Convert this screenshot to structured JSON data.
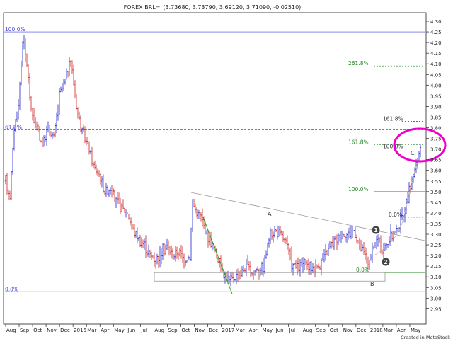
{
  "chart_data": {
    "type": "ohlc",
    "title": "FOREX BRL=",
    "quote_header": "(3.73680, 3.73790, 3.69120, 3.71090, -0.02510)",
    "footer": "Created in MetaStock",
    "y_axis": {
      "position": "right",
      "range": [
        2.95,
        4.3
      ],
      "ticks": [
        "4.30",
        "4.25",
        "4.20",
        "4.15",
        "4.10",
        "4.05",
        "4.00",
        "3.95",
        "3.90",
        "3.85",
        "3.80",
        "3.75",
        "3.70",
        "3.65",
        "3.60",
        "3.55",
        "3.50",
        "3.45",
        "3.40",
        "3.35",
        "3.30",
        "3.25",
        "3.20",
        "3.15",
        "3.10",
        "3.05",
        "3.00",
        "2.95"
      ]
    },
    "x_axis": {
      "labels": [
        "Aug",
        "Sep",
        "Oct",
        "Nov",
        "Dec",
        "2016",
        "Mar",
        "Apr",
        "May",
        "Jun",
        "Jul",
        "Aug",
        "Sep",
        "Oct",
        "Nov",
        "Dec",
        "2017",
        "Mar",
        "Apr",
        "May",
        "Jun",
        "Jul",
        "Aug",
        "Sep",
        "Oct",
        "Nov",
        "Dec",
        "2018",
        "Mar",
        "Apr",
        "May"
      ]
    },
    "series_color": "#2222cc",
    "down_color": "#cc2222",
    "fib_retracement": {
      "color": "#4444dd",
      "levels": [
        {
          "label": "100.0%",
          "value": 4.25
        },
        {
          "label": "61.8%",
          "value": 3.79
        },
        {
          "label": "0.0%",
          "value": 3.03
        }
      ]
    },
    "fib_extension_green": {
      "color": "#228822",
      "levels": [
        {
          "label": "261.8%",
          "value": 4.09
        },
        {
          "label": "161.8%",
          "value": 3.72
        },
        {
          "label": "100.0%",
          "value": 3.5
        },
        {
          "label": "0.0%",
          "value": 3.12
        }
      ]
    },
    "fib_extension_black": {
      "color": "#333333",
      "levels": [
        {
          "label": "161.8%",
          "value": 3.83
        },
        {
          "label": "100.0%",
          "value": 3.7
        },
        {
          "label": "0.0%",
          "value": 3.38
        }
      ]
    },
    "annotations": [
      {
        "label": "A",
        "type": "text"
      },
      {
        "label": "B",
        "type": "text"
      },
      {
        "label": "C",
        "type": "text"
      },
      {
        "label": "1",
        "type": "circle-marker"
      },
      {
        "label": "2",
        "type": "circle-marker"
      }
    ],
    "highlight_color": "#ee00cc",
    "last_close": 3.7109,
    "period_high": 4.25,
    "period_low": 3.03
  }
}
